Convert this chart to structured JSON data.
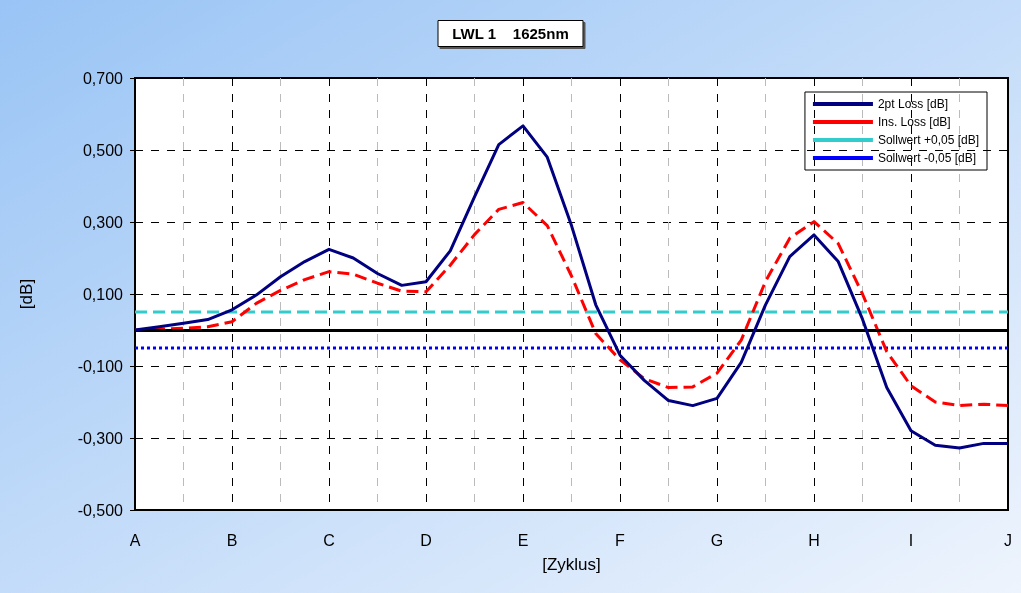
{
  "chart_data": {
    "type": "line",
    "title": "LWL 1    1625nm",
    "xlabel": "[Zyklus]",
    "ylabel": "[dB]",
    "categories": [
      "A",
      null,
      null,
      null,
      "B",
      null,
      null,
      null,
      "C",
      null,
      null,
      null,
      "D",
      null,
      null,
      null,
      "E",
      null,
      null,
      null,
      "F",
      null,
      null,
      null,
      "G",
      null,
      null,
      null,
      "H",
      null,
      null,
      null,
      "I",
      null,
      null,
      null,
      "J"
    ],
    "ylim": [
      -0.5,
      0.7
    ],
    "yticks": [
      {
        "value": -0.5,
        "label": "-0,500"
      },
      {
        "value": -0.3,
        "label": "-0,300"
      },
      {
        "value": -0.1,
        "label": "-0,100"
      },
      {
        "value": 0.1,
        "label": "0,100"
      },
      {
        "value": 0.3,
        "label": "0,300"
      },
      {
        "value": 0.5,
        "label": "0,500"
      },
      {
        "value": 0.7,
        "label": "0,700"
      }
    ],
    "grid": true,
    "legend": "top right",
    "marker": "none",
    "ref_lines": [
      {
        "axis": "y",
        "value": 0,
        "color": "#000000",
        "line_style": "solid"
      }
    ],
    "series": [
      {
        "name": "2pt Loss [dB]",
        "color": "#000080",
        "line_style": "solid",
        "values": [
          0,
          0.009,
          0.019,
          0.029,
          0.056,
          0.097,
          0.148,
          0.19,
          0.224,
          0.2,
          0.157,
          0.124,
          0.134,
          0.22,
          0.37,
          0.515,
          0.567,
          0.48,
          0.29,
          0.07,
          -0.07,
          -0.14,
          -0.196,
          -0.21,
          -0.19,
          -0.09,
          0.07,
          0.204,
          0.264,
          0.19,
          0.03,
          -0.16,
          -0.28,
          -0.32,
          -0.328,
          -0.315,
          -0.315
        ]
      },
      {
        "name": "Ins. Loss [dB]",
        "color": "#ff0000",
        "line_style": "dashed",
        "values": [
          0,
          0.002,
          0.005,
          0.009,
          0.023,
          0.074,
          0.11,
          0.14,
          0.162,
          0.155,
          0.13,
          0.108,
          0.106,
          0.18,
          0.265,
          0.335,
          0.354,
          0.29,
          0.15,
          -0.01,
          -0.083,
          -0.135,
          -0.16,
          -0.158,
          -0.12,
          -0.028,
          0.135,
          0.255,
          0.301,
          0.24,
          0.1,
          -0.06,
          -0.155,
          -0.2,
          -0.21,
          -0.206,
          -0.21
        ]
      },
      {
        "name": "Sollwert +0,05 [dB]",
        "color": "#33cccc",
        "line_style": "dashed",
        "values": [
          0.05,
          0.05,
          0.05,
          0.05,
          0.05,
          0.05,
          0.05,
          0.05,
          0.05,
          0.05,
          0.05,
          0.05,
          0.05,
          0.05,
          0.05,
          0.05,
          0.05,
          0.05,
          0.05,
          0.05,
          0.05,
          0.05,
          0.05,
          0.05,
          0.05,
          0.05,
          0.05,
          0.05,
          0.05,
          0.05,
          0.05,
          0.05,
          0.05,
          0.05,
          0.05,
          0.05,
          0.05
        ]
      },
      {
        "name": "Sollwert -0,05 [dB]",
        "color": "#0000ff",
        "line_style": "dotted",
        "values": [
          -0.05,
          -0.05,
          -0.05,
          -0.05,
          -0.05,
          -0.05,
          -0.05,
          -0.05,
          -0.05,
          -0.05,
          -0.05,
          -0.05,
          -0.05,
          -0.05,
          -0.05,
          -0.05,
          -0.05,
          -0.05,
          -0.05,
          -0.05,
          -0.05,
          -0.05,
          -0.05,
          -0.05,
          -0.05,
          -0.05,
          -0.05,
          -0.05,
          -0.05,
          -0.05,
          -0.05,
          -0.05,
          -0.05,
          -0.05,
          -0.05,
          -0.05,
          -0.05
        ]
      }
    ]
  }
}
